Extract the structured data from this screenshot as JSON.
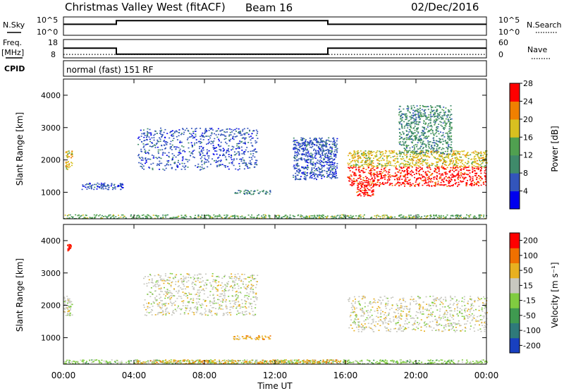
{
  "header": {
    "station": "Christmas Valley West (fitACF)",
    "beam": "Beam 16",
    "date": "02/Dec/2016"
  },
  "side_labels": {
    "nsky": "N.Sky",
    "nsearch": "N.Search",
    "freq": "Freq.",
    "mhz": "[MHz]",
    "nave": "Nave",
    "cpid": "CPID",
    "cpid_value": "normal (fast) 151 RF"
  },
  "noise_axis": {
    "left_ticks": [
      "10^5",
      "10^0"
    ],
    "right_ticks": [
      "10^5",
      "10^0"
    ]
  },
  "freq_axis": {
    "left_ticks": [
      "18",
      "8"
    ],
    "right_ticks": [
      "60",
      "0"
    ]
  },
  "chart_data": [
    {
      "type": "line",
      "name": "noise-panel",
      "x_range_hours": [
        0,
        24
      ],
      "series": [
        {
          "name": "N.Sky",
          "x": [
            0,
            3,
            3,
            15,
            15,
            24
          ],
          "y_frac": [
            0.6,
            0.6,
            0.8,
            0.8,
            0.6,
            0.6
          ]
        }
      ]
    },
    {
      "type": "line",
      "name": "freq-panel",
      "x_range_hours": [
        0,
        24
      ],
      "series": [
        {
          "name": "Freq.",
          "x": [
            0,
            3,
            3,
            15,
            15,
            24
          ],
          "y": [
            13.3,
            13.3,
            10,
            10,
            13.3,
            13.3
          ]
        },
        {
          "name": "Nave",
          "x": [
            0,
            24
          ],
          "y": [
            9.9,
            9.9
          ]
        }
      ]
    },
    {
      "type": "heatmap",
      "name": "power",
      "ylabel": "Slant Range [km]",
      "x_ticks": [
        "00:00",
        "04:00",
        "08:00",
        "12:00",
        "16:00",
        "20:00",
        "00:00"
      ],
      "y_ticks": [
        1000,
        2000,
        3000,
        4000
      ],
      "y_range": [
        180,
        4500
      ],
      "colorbar": {
        "label": "Power [dB]",
        "ticks": [
          "4",
          "8",
          "12",
          "16",
          "20",
          "24",
          "28"
        ],
        "colors": [
          "#0000ee",
          "#3355bb",
          "#3f8a6a",
          "#50a050",
          "#d8c020",
          "#f08000",
          "#ff0000"
        ]
      },
      "regions": [
        {
          "t": [
            0.0,
            24.0
          ],
          "r": [
            200,
            320
          ],
          "level": 3
        },
        {
          "t": [
            16.1,
            24.0
          ],
          "r": [
            1200,
            1800
          ],
          "level": 6
        },
        {
          "t": [
            16.6,
            17.6
          ],
          "r": [
            900,
            1400
          ],
          "level": 6
        },
        {
          "t": [
            16.1,
            24.0
          ],
          "r": [
            1800,
            2300
          ],
          "level": 4
        },
        {
          "t": [
            9.6,
            11.8
          ],
          "r": [
            950,
            1080
          ],
          "level": 2
        },
        {
          "t": [
            4.2,
            11.0
          ],
          "r": [
            1700,
            3000
          ],
          "level": 1
        },
        {
          "t": [
            0.1,
            0.5
          ],
          "r": [
            1700,
            2300
          ],
          "level": 4
        },
        {
          "t": [
            1.0,
            3.5
          ],
          "r": [
            1100,
            1300
          ],
          "level": 1
        },
        {
          "t": [
            13.0,
            15.5
          ],
          "r": [
            1400,
            2700
          ],
          "level": 1
        },
        {
          "t": [
            19.0,
            22.0
          ],
          "r": [
            2200,
            3700
          ],
          "level": 2
        }
      ]
    },
    {
      "type": "heatmap",
      "name": "velocity",
      "ylabel": "Slant Range [km]",
      "xlabel": "Time UT",
      "x_ticks": [
        "00:00",
        "04:00",
        "08:00",
        "12:00",
        "16:00",
        "20:00",
        "00:00"
      ],
      "y_ticks": [
        1000,
        2000,
        3000,
        4000
      ],
      "y_range": [
        180,
        4500
      ],
      "colorbar": {
        "label": "Velocity [m s⁻¹]",
        "ticks": [
          "200",
          "100",
          "50",
          "15",
          "-15",
          "-50",
          "-100",
          "-200"
        ],
        "colors": [
          "#1840c0",
          "#2f7a7a",
          "#3f9a50",
          "#80cc40",
          "#c8c8c0",
          "#e8b020",
          "#f07000",
          "#ff0000"
        ]
      },
      "regions": [
        {
          "t": [
            0.0,
            24.0
          ],
          "r": [
            200,
            330
          ],
          "level": 3
        },
        {
          "t": [
            4.0,
            16.0
          ],
          "r": [
            200,
            330
          ],
          "level": 5
        },
        {
          "t": [
            16.1,
            24.0
          ],
          "r": [
            1200,
            2300
          ],
          "level": 4
        },
        {
          "t": [
            0.0,
            0.5
          ],
          "r": [
            1700,
            2300
          ],
          "level": 4
        },
        {
          "t": [
            9.6,
            11.8
          ],
          "r": [
            950,
            1080
          ],
          "level": 5
        },
        {
          "t": [
            4.5,
            11.0
          ],
          "r": [
            1700,
            3000
          ],
          "level": 4
        },
        {
          "t": [
            0.2,
            0.4
          ],
          "r": [
            3700,
            3900
          ],
          "level": 7
        }
      ]
    }
  ]
}
